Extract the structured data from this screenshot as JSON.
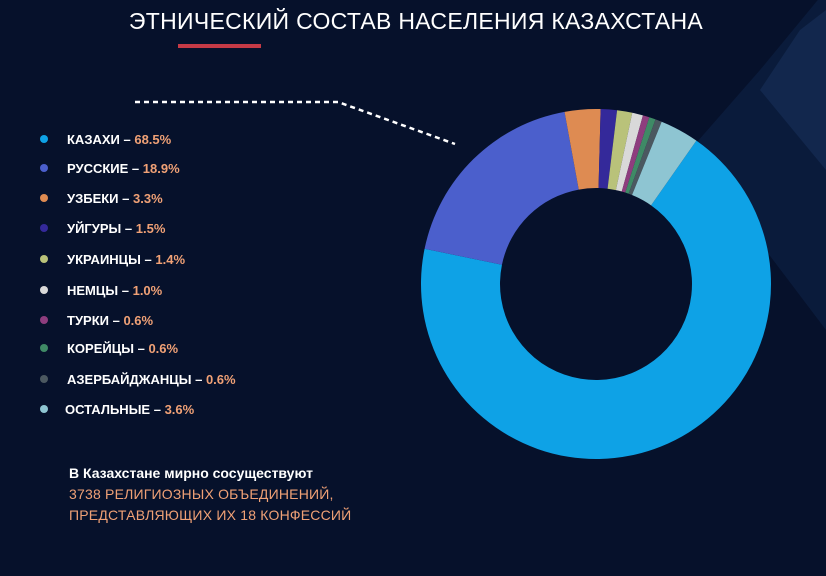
{
  "title": "ЭТНИЧЕСКИЙ СОСТАВ НАСЕЛЕНИЯ КАЗАХСТАНА",
  "chart_data": {
    "type": "pie",
    "variant": "donut",
    "categories": [
      "КАЗАХИ",
      "РУССКИЕ",
      "УЗБЕКИ",
      "УЙГУРЫ",
      "УКРАИНЦЫ",
      "НЕМЦЫ",
      "ТУРКИ",
      "КОРЕЙЦЫ",
      "АЗЕРБАЙДЖАНЦЫ",
      "ОСТАЛЬНЫЕ"
    ],
    "values": [
      68.5,
      18.9,
      3.3,
      1.5,
      1.4,
      1.0,
      0.6,
      0.6,
      0.6,
      3.6
    ],
    "labels": [
      "68.5%",
      "18.9%",
      "3.3%",
      "1.5%",
      "1.4%",
      "1.0%",
      "0.6%",
      "0.6%",
      "0.6%",
      "3.6%"
    ],
    "colors": [
      "#0ea2e6",
      "#4b5fcc",
      "#de8b52",
      "#34299a",
      "#b9c27a",
      "#d9d9d9",
      "#8e3d7e",
      "#3f8a66",
      "#4b5860",
      "#8ec5d2"
    ],
    "legend_position": "left",
    "legend_separator": "–"
  },
  "note": {
    "line1": "В Казахстане мирно сосуществуют",
    "line2": "3738 РЕЛИГИОЗНЫХ ОБЪЕДИНЕНИЙ,",
    "line3": "ПРЕДСТАВЛЯЮЩИХ ИХ 18 КОНФЕССИЙ"
  }
}
